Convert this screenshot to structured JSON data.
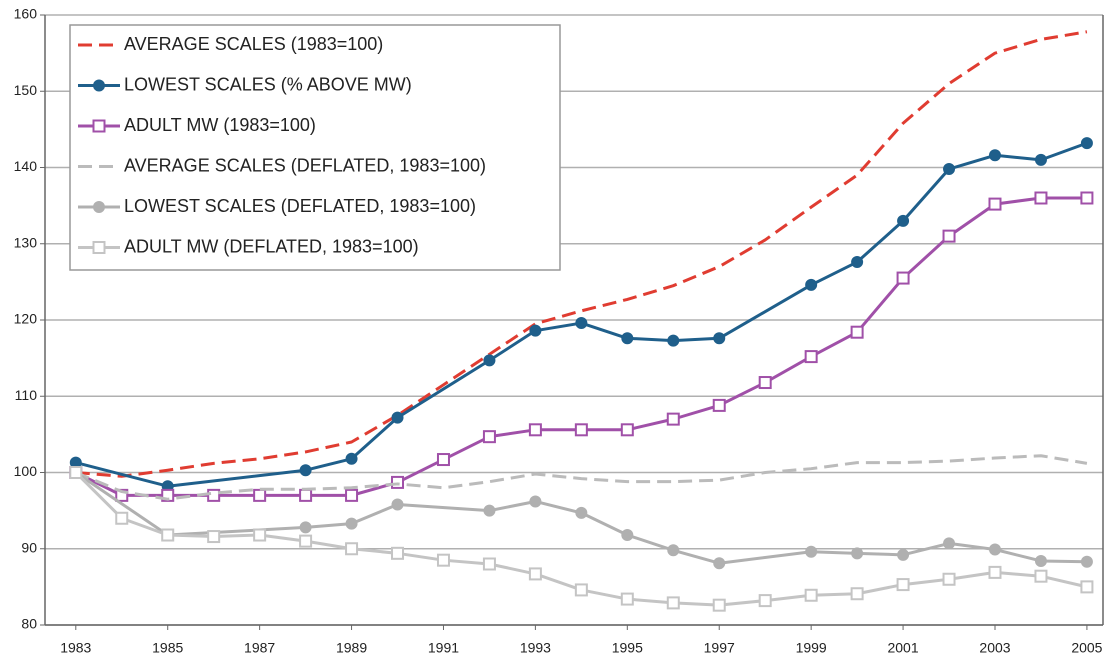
{
  "chart_data": {
    "type": "line",
    "x": [
      1983,
      1984,
      1985,
      1986,
      1987,
      1988,
      1989,
      1990,
      1991,
      1992,
      1993,
      1994,
      1995,
      1996,
      1997,
      1998,
      1999,
      2000,
      2001,
      2002,
      2003,
      2004,
      2005
    ],
    "xlim": [
      1982.33,
      2005.35
    ],
    "xticks": [
      1983,
      1985,
      1987,
      1989,
      1991,
      1993,
      1995,
      1997,
      1999,
      2001,
      2003,
      2005
    ],
    "ylim": [
      80,
      160
    ],
    "yticks": [
      80,
      90,
      100,
      110,
      120,
      130,
      140,
      150,
      160
    ],
    "grid": true,
    "legend": "upper-left",
    "series": [
      {
        "name": "AVERAGE SCALES (1983=100)",
        "color": "#e03c31",
        "dash": true,
        "marker": "none",
        "values": [
          100,
          99.5,
          100.3,
          101.2,
          101.8,
          102.7,
          104,
          107.5,
          111.5,
          115.5,
          119.5,
          121.2,
          122.7,
          124.5,
          127,
          130.5,
          134.8,
          139,
          145.8,
          151,
          155,
          156.8,
          157.8
        ]
      },
      {
        "name": "LOWEST SCALES (% ABOVE MW)",
        "color": "#1f5f8b",
        "dash": false,
        "marker": "circle",
        "x": [
          1983,
          1985,
          1988,
          1989,
          1990,
          1992,
          1993,
          1994,
          1995,
          1996,
          1997,
          1999,
          2000,
          2001,
          2002,
          2003,
          2004,
          2005
        ],
        "values": [
          101.3,
          98.2,
          100.3,
          101.8,
          107.2,
          114.7,
          118.6,
          119.6,
          117.6,
          117.3,
          117.6,
          124.6,
          127.6,
          133,
          139.8,
          141.6,
          141,
          143.2
        ]
      },
      {
        "name": "ADULT MW (1983=100)",
        "color": "#a050a8",
        "dash": false,
        "marker": "square",
        "values": [
          100,
          97,
          97,
          97,
          97,
          97,
          97,
          98.7,
          101.7,
          104.7,
          105.6,
          105.6,
          105.6,
          107,
          108.8,
          111.8,
          115.2,
          118.4,
          125.5,
          131,
          135.2,
          136,
          136
        ]
      },
      {
        "name": "AVERAGE SCALES (DEFLATED, 1983=100)",
        "color": "#bbbbbb",
        "dash": true,
        "marker": "none",
        "values": [
          100,
          97.5,
          96.5,
          97.3,
          97.8,
          97.8,
          98,
          98.5,
          98,
          98.8,
          99.8,
          99.2,
          98.8,
          98.8,
          99,
          100,
          100.5,
          101.3,
          101.3,
          101.5,
          101.9,
          102.2,
          101.2
        ]
      },
      {
        "name": "LOWEST SCALES (DEFLATED, 1983=100)",
        "color": "#b0b0b0",
        "dash": false,
        "marker": "circle",
        "x": [
          1983,
          1985,
          1988,
          1989,
          1990,
          1992,
          1993,
          1994,
          1995,
          1996,
          1997,
          1999,
          2000,
          2001,
          2002,
          2003,
          2004,
          2005
        ],
        "values": [
          100,
          91.8,
          92.8,
          93.3,
          95.8,
          95,
          96.2,
          94.7,
          91.8,
          89.8,
          88.1,
          89.6,
          89.4,
          89.2,
          90.7,
          89.9,
          88.4,
          88.3
        ]
      },
      {
        "name": "ADULT MW (DEFLATED, 1983=100)",
        "color": "#c4c4c4",
        "dash": false,
        "marker": "square",
        "values": [
          100,
          94,
          91.8,
          91.6,
          91.8,
          91,
          90,
          89.4,
          88.5,
          88,
          86.7,
          84.6,
          83.4,
          82.9,
          82.6,
          83.2,
          83.9,
          84.1,
          85.3,
          86,
          86.9,
          86.4,
          85
        ]
      }
    ]
  }
}
